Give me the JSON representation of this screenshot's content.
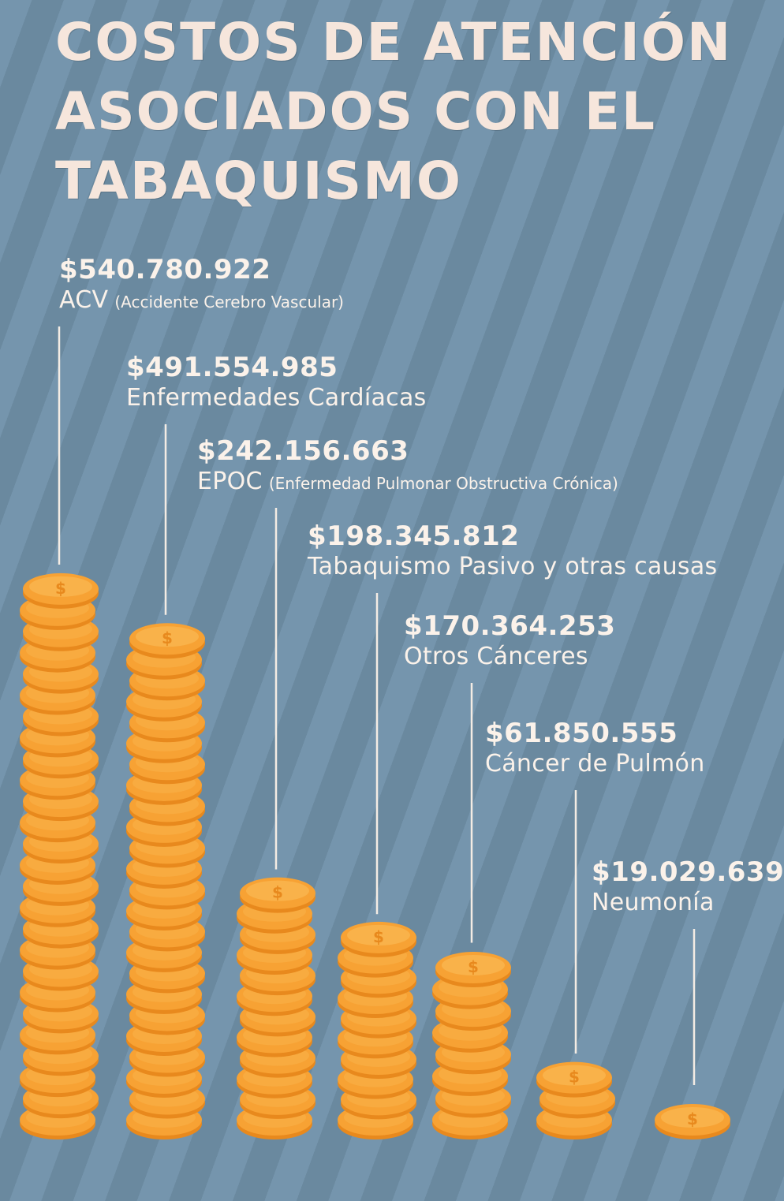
{
  "chart_data": {
    "type": "bar",
    "title": "COSTOS DE ATENCIÓN ASOCIADOS CON EL TABAQUISMO",
    "categories": [
      "ACV",
      "Enfermedades Cardíacas",
      "EPOC",
      "Tabaquismo Pasivo y otras causas",
      "Otros Cánceres",
      "Cáncer de Pulmón",
      "Neumonía"
    ],
    "notes": [
      "(Accidente Cerebro Vascular)",
      "",
      "(Enfermedad Pulmonar Obstructiva Crónica)",
      "",
      "",
      "",
      ""
    ],
    "value_labels": [
      "$540.780.922",
      "$491.554.985",
      "$242.156.663",
      "$198.345.812",
      "$170.364.253",
      "$61.850.555",
      "$19.029.639"
    ],
    "values": [
      540780922,
      491554985,
      242156663,
      198345812,
      170364253,
      61850555,
      19029639
    ],
    "marker": "coin stacks",
    "colors": {
      "coin": "#f7a234",
      "coin_edge": "#e8891d",
      "coin_face": "#f9b24a",
      "text": "#fbf2ea",
      "background": "#6f8fa7"
    }
  }
}
